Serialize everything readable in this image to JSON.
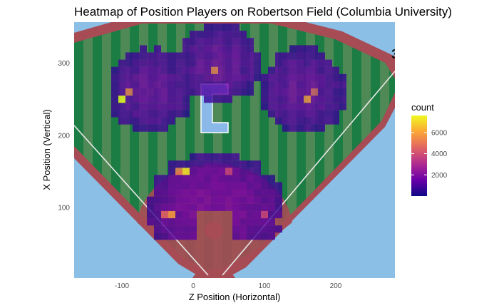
{
  "chart_data": {
    "type": "heatmap",
    "title": "Heatmap of Position Players on Robertson Field (Columbia University)",
    "xlabel": "Z Position (Horizontal)",
    "ylabel": "X Position (Vertical)",
    "xlim": [
      -167,
      283
    ],
    "ylim": [
      2,
      357
    ],
    "x_ticks": [
      -100,
      0,
      100,
      200
    ],
    "y_ticks": [
      100,
      200,
      300
    ],
    "grid": false,
    "background": "baseball field diagram",
    "legend": {
      "title": "count",
      "position": "right",
      "ticks": [
        2000,
        4000,
        6000
      ],
      "range": [
        0,
        7600
      ],
      "colormap": [
        "#0d0887",
        "#6a00a8",
        "#b12a90",
        "#e16462",
        "#fca636",
        "#f0f921"
      ]
    },
    "cell_size": 10,
    "clusters": [
      {
        "name": "left field",
        "x": -60,
        "y": 265,
        "rx": 60,
        "ry": 62
      },
      {
        "name": "center field",
        "x": 30,
        "y": 300,
        "rx": 65,
        "ry": 58
      },
      {
        "name": "right field",
        "x": 150,
        "y": 265,
        "rx": 65,
        "ry": 62
      },
      {
        "name": "infield",
        "x": 30,
        "y": 100,
        "rx": 100,
        "ry": 80
      }
    ],
    "hotspots": [
      {
        "x": -100,
        "y": 245,
        "count": 7600
      },
      {
        "x": -95,
        "y": 255,
        "count": 5000
      },
      {
        "x": 155,
        "y": 245,
        "count": 5500
      },
      {
        "x": 165,
        "y": 255,
        "count": 4200
      },
      {
        "x": 30,
        "y": 290,
        "count": 5000
      },
      {
        "x": -10,
        "y": 145,
        "count": 7400
      },
      {
        "x": -25,
        "y": 145,
        "count": 5200
      },
      {
        "x": -35,
        "y": 90,
        "count": 5800
      },
      {
        "x": -45,
        "y": 90,
        "count": 4500
      },
      {
        "x": 50,
        "y": 150,
        "count": 3500
      },
      {
        "x": 100,
        "y": 90,
        "count": 3500
      }
    ],
    "field_text": "3"
  }
}
